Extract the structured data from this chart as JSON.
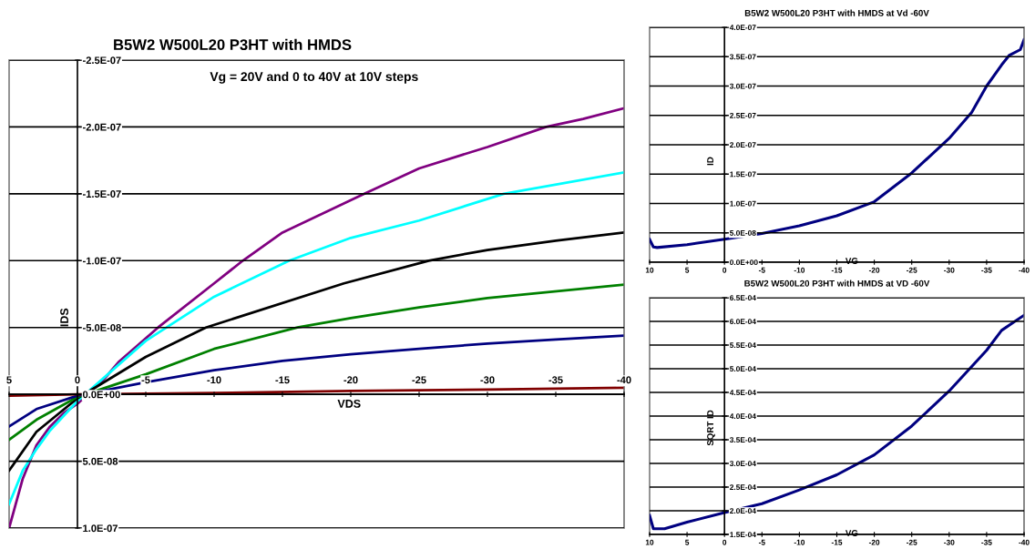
{
  "chart_data": [
    {
      "type": "line",
      "title": "B5W2 W500L20 P3HT with HMDS",
      "subtitle": "Vg = 20V and 0 to 40V at 10V steps",
      "xlabel": "VDS",
      "ylabel": "IDS",
      "grid": "y",
      "xlim": [
        5,
        -40
      ],
      "xticks": [
        5,
        0,
        -5,
        -10,
        -15,
        -20,
        -25,
        -30,
        -35,
        -40
      ],
      "ylim": [
        1e-07,
        -2.5e-07
      ],
      "yticks": [
        {
          "value": -2.5e-07,
          "label": "-2.5E-07"
        },
        {
          "value": -2e-07,
          "label": "-2.0E-07"
        },
        {
          "value": -1.5e-07,
          "label": "-1.5E-07"
        },
        {
          "value": -1e-07,
          "label": "-1.0E-07"
        },
        {
          "value": -5e-08,
          "label": "-5.0E-08"
        },
        {
          "value": 0,
          "label": "0.0E+00"
        },
        {
          "value": 5e-08,
          "label": "5.0E-08"
        },
        {
          "value": 1e-07,
          "label": "1.0E-07"
        }
      ],
      "series": [
        {
          "color": "#800080",
          "x": [
            5,
            4,
            3,
            2,
            1,
            0,
            -2,
            -3,
            -5.9,
            -10,
            -12.1,
            -15,
            -21,
            -25,
            -30,
            -34.3,
            -37,
            -40
          ],
          "values": [
            1e-07,
            6.3e-08,
            3.8e-08,
            2.4e-08,
            1.4e-08,
            7e-09,
            -1.2e-08,
            -2.4e-08,
            -5e-08,
            -8.3e-08,
            -1e-07,
            -1.21e-07,
            -1.5e-07,
            -1.69e-07,
            -1.85e-07,
            -2e-07,
            -2.06e-07,
            -2.14e-07
          ]
        },
        {
          "color": "#00ffff",
          "x": [
            5,
            4,
            3,
            2,
            0,
            -5,
            -10,
            -15.5,
            -20,
            -25,
            -31.2,
            -40
          ],
          "values": [
            8.2e-08,
            5.7e-08,
            4.1e-08,
            2.7e-08,
            5e-09,
            -4e-08,
            -7.3e-08,
            -1e-07,
            -1.17e-07,
            -1.3e-07,
            -1.5e-07,
            -1.66e-07
          ]
        },
        {
          "color": "#000000",
          "x": [
            5,
            3,
            0,
            -5,
            -9.4,
            -19.5,
            -25.7,
            -30,
            -35,
            -40
          ],
          "values": [
            5.7e-08,
            2.8e-08,
            3e-09,
            -2.8e-08,
            -5e-08,
            -8.3e-08,
            -1e-07,
            -1.08e-07,
            -1.15e-07,
            -1.21e-07
          ]
        },
        {
          "color": "#008000",
          "x": [
            5,
            3,
            0,
            -5,
            -10,
            -16.1,
            -20,
            -25,
            -30,
            -40
          ],
          "values": [
            3.4e-08,
            1.9e-08,
            2e-09,
            -1.5e-08,
            -3.4e-08,
            -5e-08,
            -5.7e-08,
            -6.5e-08,
            -7.2e-08,
            -8.2e-08
          ]
        },
        {
          "color": "#000080",
          "x": [
            5,
            3,
            0,
            -5,
            -10,
            -15,
            -20,
            -25,
            -30,
            -35,
            -40
          ],
          "values": [
            2.4e-08,
            1.1e-08,
            1e-09,
            -9e-09,
            -1.8e-08,
            -2.5e-08,
            -3e-08,
            -3.4e-08,
            -3.8e-08,
            -4.1e-08,
            -4.4e-08
          ]
        },
        {
          "color": "#800000",
          "x": [
            5,
            0,
            -10,
            -20,
            -30,
            -40
          ],
          "values": [
            1e-09,
            0,
            -1e-09,
            -2.5e-09,
            -3.6e-09,
            -5e-09
          ]
        }
      ]
    },
    {
      "type": "line",
      "title": "B5W2 W500L20 P3HT with HMDS at Vd -60V",
      "xlabel": "VG",
      "ylabel": "ID",
      "grid": "y",
      "xlim": [
        10,
        -40
      ],
      "xticks": [
        10,
        5,
        0,
        -5,
        -10,
        -15,
        -20,
        -25,
        -30,
        -35,
        -40
      ],
      "ylim": [
        0,
        4e-07
      ],
      "yticks": [
        {
          "value": 0,
          "label": "0.0E+00"
        },
        {
          "value": 5e-08,
          "label": "5.0E-08"
        },
        {
          "value": 1e-07,
          "label": "1.0E-07"
        },
        {
          "value": 1.5e-07,
          "label": "1.5E-07"
        },
        {
          "value": 2e-07,
          "label": "2.0E-07"
        },
        {
          "value": 2.5e-07,
          "label": "2.5E-07"
        },
        {
          "value": 3e-07,
          "label": "3.0E-07"
        },
        {
          "value": 3.5e-07,
          "label": "3.5E-07"
        },
        {
          "value": 4e-07,
          "label": "4.0E-07"
        }
      ],
      "series": [
        {
          "color": "#000080",
          "x": [
            10,
            9.5,
            9,
            5,
            0,
            -5,
            -10,
            -15,
            -20,
            -25,
            -30,
            -33,
            -35,
            -37,
            -38,
            -39.5,
            -40
          ],
          "values": [
            3.9e-08,
            2.6e-08,
            2.5e-08,
            3e-08,
            3.9e-08,
            4.9e-08,
            6.2e-08,
            7.9e-08,
            1.03e-07,
            1.52e-07,
            2.11e-07,
            2.55e-07,
            3e-07,
            3.36e-07,
            3.52e-07,
            3.62e-07,
            3.79e-07
          ]
        }
      ]
    },
    {
      "type": "line",
      "title": "B5W2 W500L20 P3HT with HMDS at VD -60V",
      "xlabel": "VG",
      "ylabel": "SQRT ID",
      "grid": "y",
      "xlim": [
        10,
        -40
      ],
      "xticks": [
        10,
        5,
        0,
        -5,
        -10,
        -15,
        -20,
        -25,
        -30,
        -35,
        -40
      ],
      "ylim": [
        0.00015,
        0.00065
      ],
      "yticks": [
        {
          "value": 0.00015,
          "label": "1.5E-04"
        },
        {
          "value": 0.0002,
          "label": "2.0E-04"
        },
        {
          "value": 0.00025,
          "label": "2.5E-04"
        },
        {
          "value": 0.0003,
          "label": "3.0E-04"
        },
        {
          "value": 0.00035,
          "label": "3.5E-04"
        },
        {
          "value": 0.0004,
          "label": "4.0E-04"
        },
        {
          "value": 0.00045,
          "label": "4.5E-04"
        },
        {
          "value": 0.0005,
          "label": "5.0E-04"
        },
        {
          "value": 0.00055,
          "label": "5.5E-04"
        },
        {
          "value": 0.0006,
          "label": "6.0E-04"
        },
        {
          "value": 0.00065,
          "label": "6.5E-04"
        }
      ],
      "series": [
        {
          "color": "#000080",
          "x": [
            10,
            9.5,
            8,
            5,
            0,
            -5,
            -10,
            -15,
            -20,
            -25,
            -30,
            -35,
            -37,
            -38.5,
            -40
          ],
          "values": [
            0.00019,
            0.000162,
            0.000162,
            0.000176,
            0.000196,
            0.000215,
            0.000244,
            0.000276,
            0.000318,
            0.000379,
            0.000453,
            0.000539,
            0.000581,
            0.000597,
            0.000613
          ]
        }
      ]
    }
  ]
}
